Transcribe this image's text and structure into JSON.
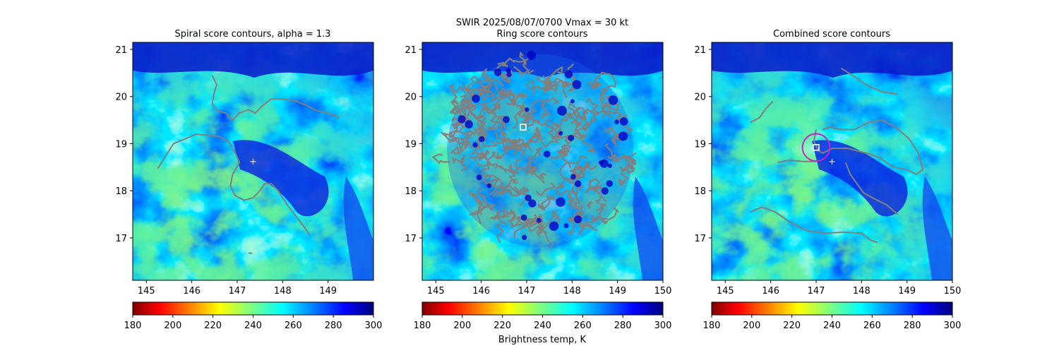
{
  "figure": {
    "suptitle_line1": "SWIR  2025/08/07/0700    Vmax = 30 kt",
    "colorbar_label": "Brightness temp, K"
  },
  "colors": {
    "contour": "#808080",
    "center_marker": "#ffffff",
    "best_circle": "#cc22cc"
  },
  "colorbar": {
    "colormap": "jet_r",
    "range": [
      180,
      300
    ],
    "ticks": [
      "180",
      "200",
      "220",
      "240",
      "260",
      "280",
      "300"
    ]
  },
  "chart_data": [
    {
      "type": "heatmap",
      "title": "Spiral score contours, alpha =  1.3",
      "xlabel": "",
      "ylabel": "",
      "xlim": [
        144.7,
        150.0
      ],
      "ylim": [
        16.1,
        21.15
      ],
      "xticks": [
        "145",
        "146",
        "147",
        "148",
        "149"
      ],
      "yticks": [
        "17",
        "18",
        "19",
        "20",
        "21"
      ],
      "center_marker": {
        "lon": 147.35,
        "lat": 18.62
      },
      "contours": [
        [
          [
            147.25,
            16.68
          ],
          [
            147.33,
            16.67
          ]
        ],
        [
          [
            145.25,
            18.47
          ],
          [
            145.45,
            18.78
          ],
          [
            145.6,
            19.0
          ],
          [
            145.85,
            19.1
          ],
          [
            146.1,
            19.2
          ],
          [
            146.35,
            19.18
          ],
          [
            146.6,
            19.15
          ],
          [
            146.8,
            19.05
          ],
          [
            146.95,
            18.82
          ],
          [
            147.05,
            18.6
          ],
          [
            146.9,
            18.35
          ],
          [
            146.85,
            18.1
          ],
          [
            146.95,
            17.9
          ],
          [
            147.15,
            17.8
          ],
          [
            147.35,
            17.85
          ],
          [
            147.5,
            18.0
          ],
          [
            147.6,
            18.15
          ],
          [
            147.75,
            18.15
          ],
          [
            147.9,
            18.0
          ],
          [
            148.1,
            17.7
          ],
          [
            148.3,
            17.45
          ],
          [
            148.5,
            17.2
          ],
          [
            148.6,
            17.05
          ]
        ],
        [
          [
            146.45,
            20.45
          ],
          [
            146.55,
            20.25
          ],
          [
            146.5,
            20.1
          ],
          [
            146.45,
            19.85
          ],
          [
            146.55,
            19.7
          ],
          [
            146.75,
            19.65
          ],
          [
            146.9,
            19.5
          ],
          [
            147.05,
            19.65
          ],
          [
            147.25,
            19.72
          ],
          [
            147.4,
            19.65
          ],
          [
            147.55,
            19.8
          ],
          [
            147.75,
            19.95
          ],
          [
            148.0,
            19.95
          ],
          [
            148.3,
            19.9
          ],
          [
            148.55,
            19.8
          ],
          [
            148.75,
            19.7
          ],
          [
            149.0,
            19.65
          ],
          [
            149.25,
            19.55
          ]
        ]
      ]
    },
    {
      "type": "heatmap",
      "title": "Ring score contours",
      "title_line_above": "SWIR  2025/08/07/0700    Vmax = 30 kt",
      "xlabel": "",
      "ylabel": "",
      "xlim": [
        144.7,
        150.0
      ],
      "ylim": [
        16.1,
        21.15
      ],
      "xticks": [
        "145",
        "146",
        "147",
        "148",
        "149",
        "150"
      ],
      "yticks": [
        "17",
        "18",
        "19",
        "20",
        "21"
      ],
      "best_box": {
        "lon": 146.92,
        "lat": 19.35
      },
      "ring_region": {
        "center_lon": 147.3,
        "center_lat": 18.85,
        "radius_deg": 2.05
      },
      "contours": []
    },
    {
      "type": "heatmap",
      "title": "Combined score contours",
      "xlabel": "",
      "ylabel": "",
      "xlim": [
        144.7,
        150.0
      ],
      "ylim": [
        16.1,
        21.15
      ],
      "xticks": [
        "145",
        "146",
        "147",
        "148",
        "149",
        "150"
      ],
      "yticks": [
        "17",
        "18",
        "19",
        "20",
        "21"
      ],
      "center_marker": {
        "lon": 147.35,
        "lat": 18.62
      },
      "best_box": {
        "lon": 147.0,
        "lat": 18.92
      },
      "best_circle_radius_deg": 0.3,
      "contours": [
        [
          [
            145.55,
            19.45
          ],
          [
            145.75,
            19.55
          ],
          [
            145.9,
            19.75
          ],
          [
            146.05,
            19.9
          ]
        ],
        [
          [
            147.0,
            19.3
          ],
          [
            146.95,
            19.05
          ],
          [
            147.05,
            18.85
          ],
          [
            147.15,
            18.8
          ],
          [
            147.35,
            18.9
          ],
          [
            147.7,
            18.9
          ],
          [
            148.1,
            18.8
          ],
          [
            148.4,
            18.7
          ],
          [
            148.7,
            18.5
          ],
          [
            149.0,
            18.45
          ],
          [
            149.2,
            18.35
          ],
          [
            149.35,
            18.45
          ],
          [
            149.25,
            18.8
          ],
          [
            149.05,
            19.1
          ],
          [
            148.75,
            19.35
          ],
          [
            148.45,
            19.5
          ],
          [
            148.15,
            19.45
          ],
          [
            147.85,
            19.3
          ],
          [
            147.55,
            19.3
          ],
          [
            147.3,
            19.35
          ],
          [
            147.15,
            19.3
          ]
        ],
        [
          [
            147.65,
            18.6
          ],
          [
            147.75,
            18.35
          ],
          [
            147.9,
            18.15
          ],
          [
            148.05,
            17.95
          ],
          [
            148.3,
            17.82
          ],
          [
            148.55,
            17.7
          ],
          [
            148.8,
            17.5
          ]
        ],
        [
          [
            146.15,
            18.6
          ],
          [
            146.4,
            18.65
          ],
          [
            146.7,
            18.62
          ],
          [
            147.0,
            18.62
          ]
        ],
        [
          [
            145.55,
            17.55
          ],
          [
            145.8,
            17.65
          ],
          [
            146.1,
            17.55
          ],
          [
            146.4,
            17.35
          ],
          [
            146.8,
            17.15
          ],
          [
            147.2,
            17.1
          ],
          [
            147.6,
            17.12
          ],
          [
            148.0,
            17.1
          ],
          [
            148.2,
            16.95
          ],
          [
            148.35,
            16.9
          ]
        ],
        [
          [
            147.55,
            20.6
          ],
          [
            147.8,
            20.45
          ],
          [
            148.1,
            20.25
          ],
          [
            148.45,
            20.1
          ],
          [
            148.8,
            20.05
          ]
        ]
      ]
    }
  ]
}
